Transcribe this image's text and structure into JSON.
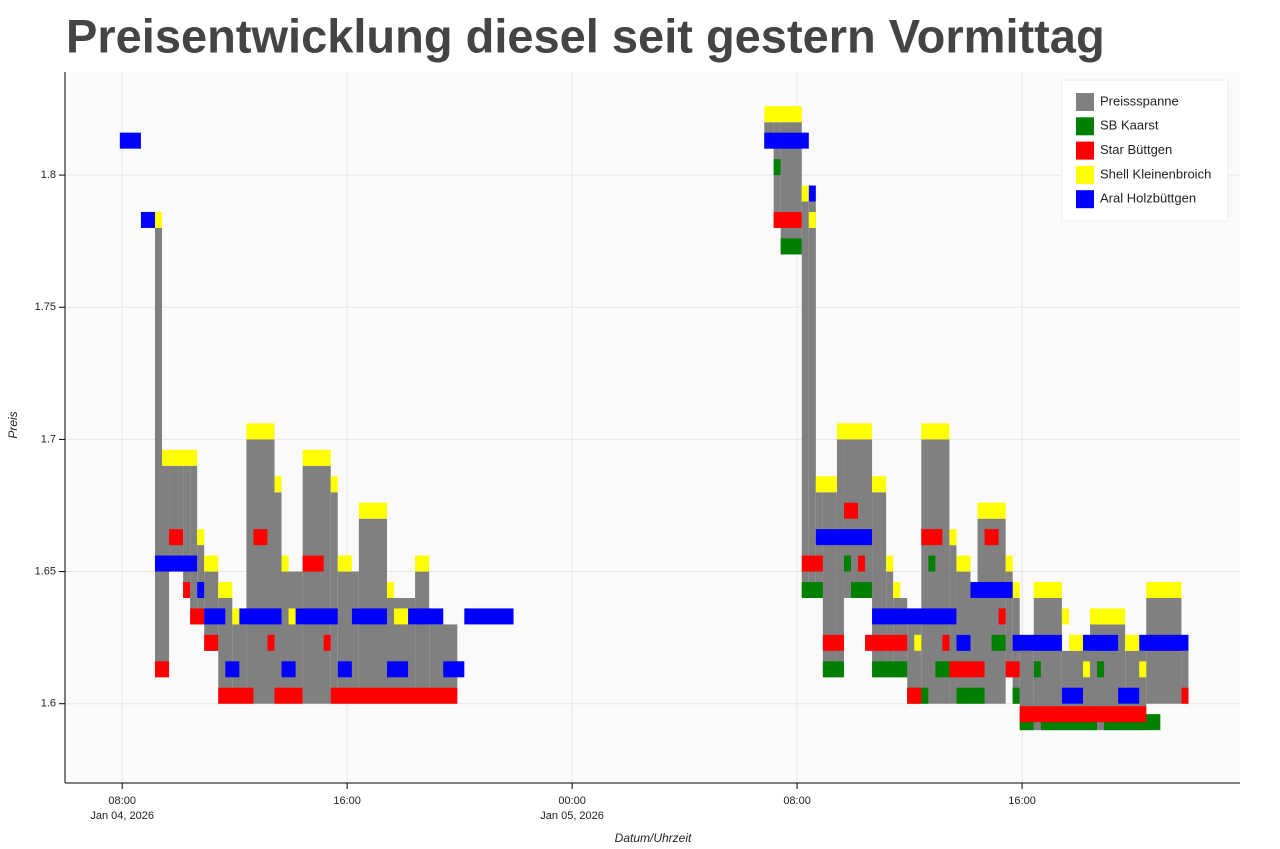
{
  "chart_data": {
    "type": "step-range",
    "title": "Preisentwicklung diesel seit gestern Vormittag",
    "x_label": "Datum/Uhrzeit",
    "y_label": "Preis",
    "xlim": [
      "2026-01-04 05:58",
      "2026-01-05 23:45"
    ],
    "xticks": [
      {
        "value": "2026-01-04 08:00",
        "label": "08:00\nJan 04, 2026"
      },
      {
        "value": "2026-01-04 16:00",
        "label": "16:00"
      },
      {
        "value": "2026-01-05 00:00",
        "label": "00:00\nJan 05, 2026"
      },
      {
        "value": "2026-01-05 08:00",
        "label": "08:00"
      },
      {
        "value": "2026-01-05 16:00",
        "label": "16:00"
      }
    ],
    "ylim": [
      1.57,
      1.839
    ],
    "yticks": [
      1.6,
      1.65,
      1.7,
      1.75,
      1.8
    ],
    "grid": true,
    "legend": "top-right",
    "series": [
      {
        "name": "Preissspanne",
        "color": "#808080",
        "x": [
          "2026-01-04 09:10",
          "2026-01-04 09:25",
          "2026-01-04 09:40",
          "2026-01-04 10:10",
          "2026-01-04 10:25",
          "2026-01-04 10:40",
          "2026-01-04 10:55",
          "2026-01-04 11:25",
          "2026-01-04 11:55",
          "2026-01-04 12:25",
          "2026-01-04 13:25",
          "2026-01-04 13:40",
          "2026-01-04 14:25",
          "2026-01-04 15:25",
          "2026-01-04 15:40",
          "2026-01-04 16:25",
          "2026-01-04 17:25",
          "2026-01-04 18:25",
          "2026-01-04 18:55",
          "2026-01-04 19:55",
          "2026-01-05 06:50",
          "2026-01-05 07:10",
          "2026-01-05 07:25",
          "2026-01-05 08:10",
          "2026-01-05 08:25",
          "2026-01-05 08:40",
          "2026-01-05 08:55",
          "2026-01-05 09:25",
          "2026-01-05 09:40",
          "2026-01-05 10:40",
          "2026-01-05 11:10",
          "2026-01-05 11:25",
          "2026-01-05 11:55",
          "2026-01-05 12:25",
          "2026-01-05 13:25",
          "2026-01-05 13:40",
          "2026-01-05 14:10",
          "2026-01-05 14:25",
          "2026-01-05 15:25",
          "2026-01-05 15:40",
          "2026-01-05 15:55",
          "2026-01-05 16:25",
          "2026-01-05 17:25",
          "2026-01-05 18:25",
          "2026-01-05 19:40",
          "2026-01-05 20:25",
          "2026-01-05 21:40",
          "2026-01-05 21:55"
        ],
        "values": [
          [
            1.61,
            1.78
          ],
          [
            1.61,
            1.69
          ],
          [
            1.65,
            1.69
          ],
          [
            1.64,
            1.69
          ],
          [
            1.63,
            1.69
          ],
          [
            1.63,
            1.66
          ],
          [
            1.62,
            1.65
          ],
          [
            1.6,
            1.64
          ],
          [
            1.6,
            1.63
          ],
          [
            1.6,
            1.7
          ],
          [
            1.6,
            1.68
          ],
          [
            1.6,
            1.65
          ],
          [
            1.6,
            1.69
          ],
          [
            1.6,
            1.68
          ],
          [
            1.6,
            1.65
          ],
          [
            1.6,
            1.67
          ],
          [
            1.6,
            1.64
          ],
          [
            1.6,
            1.65
          ],
          [
            1.6,
            1.63
          ],
          null,
          [
            1.81,
            1.82
          ],
          [
            1.78,
            1.82
          ],
          [
            1.77,
            1.82
          ],
          [
            1.64,
            1.79
          ],
          [
            1.64,
            1.79
          ],
          [
            1.64,
            1.68
          ],
          [
            1.61,
            1.68
          ],
          [
            1.61,
            1.7
          ],
          [
            1.64,
            1.7
          ],
          [
            1.61,
            1.68
          ],
          [
            1.61,
            1.65
          ],
          [
            1.61,
            1.64
          ],
          [
            1.6,
            1.63
          ],
          [
            1.6,
            1.7
          ],
          [
            1.6,
            1.66
          ],
          [
            1.6,
            1.65
          ],
          [
            1.6,
            1.64
          ],
          [
            1.6,
            1.67
          ],
          [
            1.61,
            1.65
          ],
          [
            1.6,
            1.64
          ],
          [
            1.59,
            1.62
          ],
          [
            1.59,
            1.64
          ],
          [
            1.59,
            1.62
          ],
          [
            1.59,
            1.63
          ],
          [
            1.59,
            1.62
          ],
          [
            1.6,
            1.64
          ],
          [
            1.6,
            1.62
          ],
          null
        ]
      },
      {
        "name": "SB Kaarst",
        "color": "#008000",
        "x": [
          "2026-01-05 07:10",
          "2026-01-05 07:25",
          "2026-01-05 08:10",
          "2026-01-05 08:55",
          "2026-01-05 09:40",
          "2026-01-05 09:55",
          "2026-01-05 10:40",
          "2026-01-05 11:55",
          "2026-01-05 12:40",
          "2026-01-05 12:55",
          "2026-01-05 13:40",
          "2026-01-05 14:40",
          "2026-01-05 14:55",
          "2026-01-05 15:25",
          "2026-01-05 15:40",
          "2026-01-05 15:55",
          "2026-01-05 16:25",
          "2026-01-05 16:40",
          "2026-01-05 18:40",
          "2026-01-05 18:55",
          "2026-01-05 20:55"
        ],
        "values": [
          1.8,
          1.77,
          1.64,
          1.61,
          1.65,
          1.64,
          1.61,
          1.6,
          1.65,
          1.61,
          1.6,
          1.64,
          1.62,
          null,
          1.6,
          1.59,
          1.61,
          1.59,
          1.61,
          1.59,
          null
        ]
      },
      {
        "name": "Star Büttgen",
        "color": "#ff0000",
        "x": [
          "2026-01-04 09:10",
          "2026-01-04 09:40",
          "2026-01-04 10:10",
          "2026-01-04 10:25",
          "2026-01-04 10:55",
          "2026-01-04 11:25",
          "2026-01-04 12:40",
          "2026-01-04 13:10",
          "2026-01-04 13:25",
          "2026-01-04 14:25",
          "2026-01-04 15:10",
          "2026-01-04 15:25",
          "2026-01-04 19:55",
          "2026-01-05 07:10",
          "2026-01-05 08:10",
          "2026-01-05 08:55",
          "2026-01-05 09:40",
          "2026-01-05 10:10",
          "2026-01-05 10:25",
          "2026-01-05 11:55",
          "2026-01-05 12:25",
          "2026-01-05 13:10",
          "2026-01-05 13:25",
          "2026-01-05 14:40",
          "2026-01-05 15:10",
          "2026-01-05 15:25",
          "2026-01-05 15:55",
          "2026-01-05 20:25",
          "2026-01-05 21:40",
          "2026-01-05 21:55"
        ],
        "values": [
          1.61,
          1.66,
          1.64,
          1.63,
          1.62,
          1.6,
          1.66,
          1.62,
          1.6,
          1.65,
          1.62,
          1.6,
          null,
          1.78,
          1.65,
          1.62,
          1.67,
          1.65,
          1.62,
          1.6,
          1.66,
          1.62,
          1.61,
          1.66,
          1.63,
          1.61,
          1.593,
          1.62,
          1.6,
          null
        ]
      },
      {
        "name": "Shell Kleinenbroich",
        "color": "#ffff00",
        "x": [
          "2026-01-04 09:10",
          "2026-01-04 09:25",
          "2026-01-04 10:40",
          "2026-01-04 10:55",
          "2026-01-04 11:25",
          "2026-01-04 11:55",
          "2026-01-04 12:25",
          "2026-01-04 13:25",
          "2026-01-04 13:40",
          "2026-01-04 13:55",
          "2026-01-04 14:25",
          "2026-01-04 15:25",
          "2026-01-04 15:40",
          "2026-01-04 16:10",
          "2026-01-04 16:25",
          "2026-01-04 17:25",
          "2026-01-04 17:40",
          "2026-01-04 18:25",
          "2026-01-04 18:55",
          "2026-01-05 06:50",
          "2026-01-05 08:10",
          "2026-01-05 08:25",
          "2026-01-05 08:40",
          "2026-01-05 09:25",
          "2026-01-05 10:40",
          "2026-01-05 11:10",
          "2026-01-05 11:25",
          "2026-01-05 11:40",
          "2026-01-05 12:10",
          "2026-01-05 12:25",
          "2026-01-05 13:25",
          "2026-01-05 13:40",
          "2026-01-05 14:10",
          "2026-01-05 14:25",
          "2026-01-05 15:25",
          "2026-01-05 15:40",
          "2026-01-05 15:55",
          "2026-01-05 16:25",
          "2026-01-05 17:25",
          "2026-01-05 17:40",
          "2026-01-05 18:10",
          "2026-01-05 18:25",
          "2026-01-05 19:40",
          "2026-01-05 20:10",
          "2026-01-05 20:25",
          "2026-01-05 21:40",
          "2026-01-05 21:55"
        ],
        "values": [
          1.78,
          1.69,
          1.66,
          1.65,
          1.64,
          1.63,
          1.7,
          1.68,
          1.65,
          1.63,
          1.69,
          1.68,
          1.65,
          1.63,
          1.67,
          1.64,
          1.63,
          1.65,
          null,
          1.82,
          1.79,
          1.78,
          1.68,
          1.7,
          1.68,
          1.65,
          1.64,
          1.63,
          1.62,
          1.7,
          1.66,
          1.65,
          1.64,
          1.67,
          1.65,
          1.64,
          1.62,
          1.64,
          1.63,
          1.62,
          1.61,
          1.63,
          1.62,
          1.61,
          1.64,
          1.62,
          null
        ]
      },
      {
        "name": "Aral Holzbüttgen",
        "color": "#0000ff",
        "x": [
          "2026-01-04 07:55",
          "2026-01-04 08:40",
          "2026-01-04 09:10",
          "2026-01-04 10:40",
          "2026-01-04 10:55",
          "2026-01-04 11:40",
          "2026-01-04 12:10",
          "2026-01-04 13:40",
          "2026-01-04 14:10",
          "2026-01-04 15:40",
          "2026-01-04 16:10",
          "2026-01-04 17:25",
          "2026-01-04 18:10",
          "2026-01-04 19:25",
          "2026-01-04 20:10",
          "2026-01-04 21:55",
          "2026-01-05 06:50",
          "2026-01-05 08:25",
          "2026-01-05 08:40",
          "2026-01-05 10:40",
          "2026-01-05 13:40",
          "2026-01-05 14:10",
          "2026-01-05 15:40",
          "2026-01-05 17:25",
          "2026-01-05 18:10",
          "2026-01-05 19:25",
          "2026-01-05 20:10",
          "2026-01-05 21:55"
        ],
        "values": [
          1.81,
          1.78,
          1.65,
          1.64,
          1.63,
          1.61,
          1.63,
          1.61,
          1.63,
          1.61,
          1.63,
          1.61,
          1.63,
          1.61,
          1.63,
          null,
          1.81,
          1.79,
          1.66,
          1.63,
          1.62,
          1.64,
          1.62,
          1.6,
          1.62,
          1.6,
          1.62,
          null
        ]
      }
    ]
  }
}
